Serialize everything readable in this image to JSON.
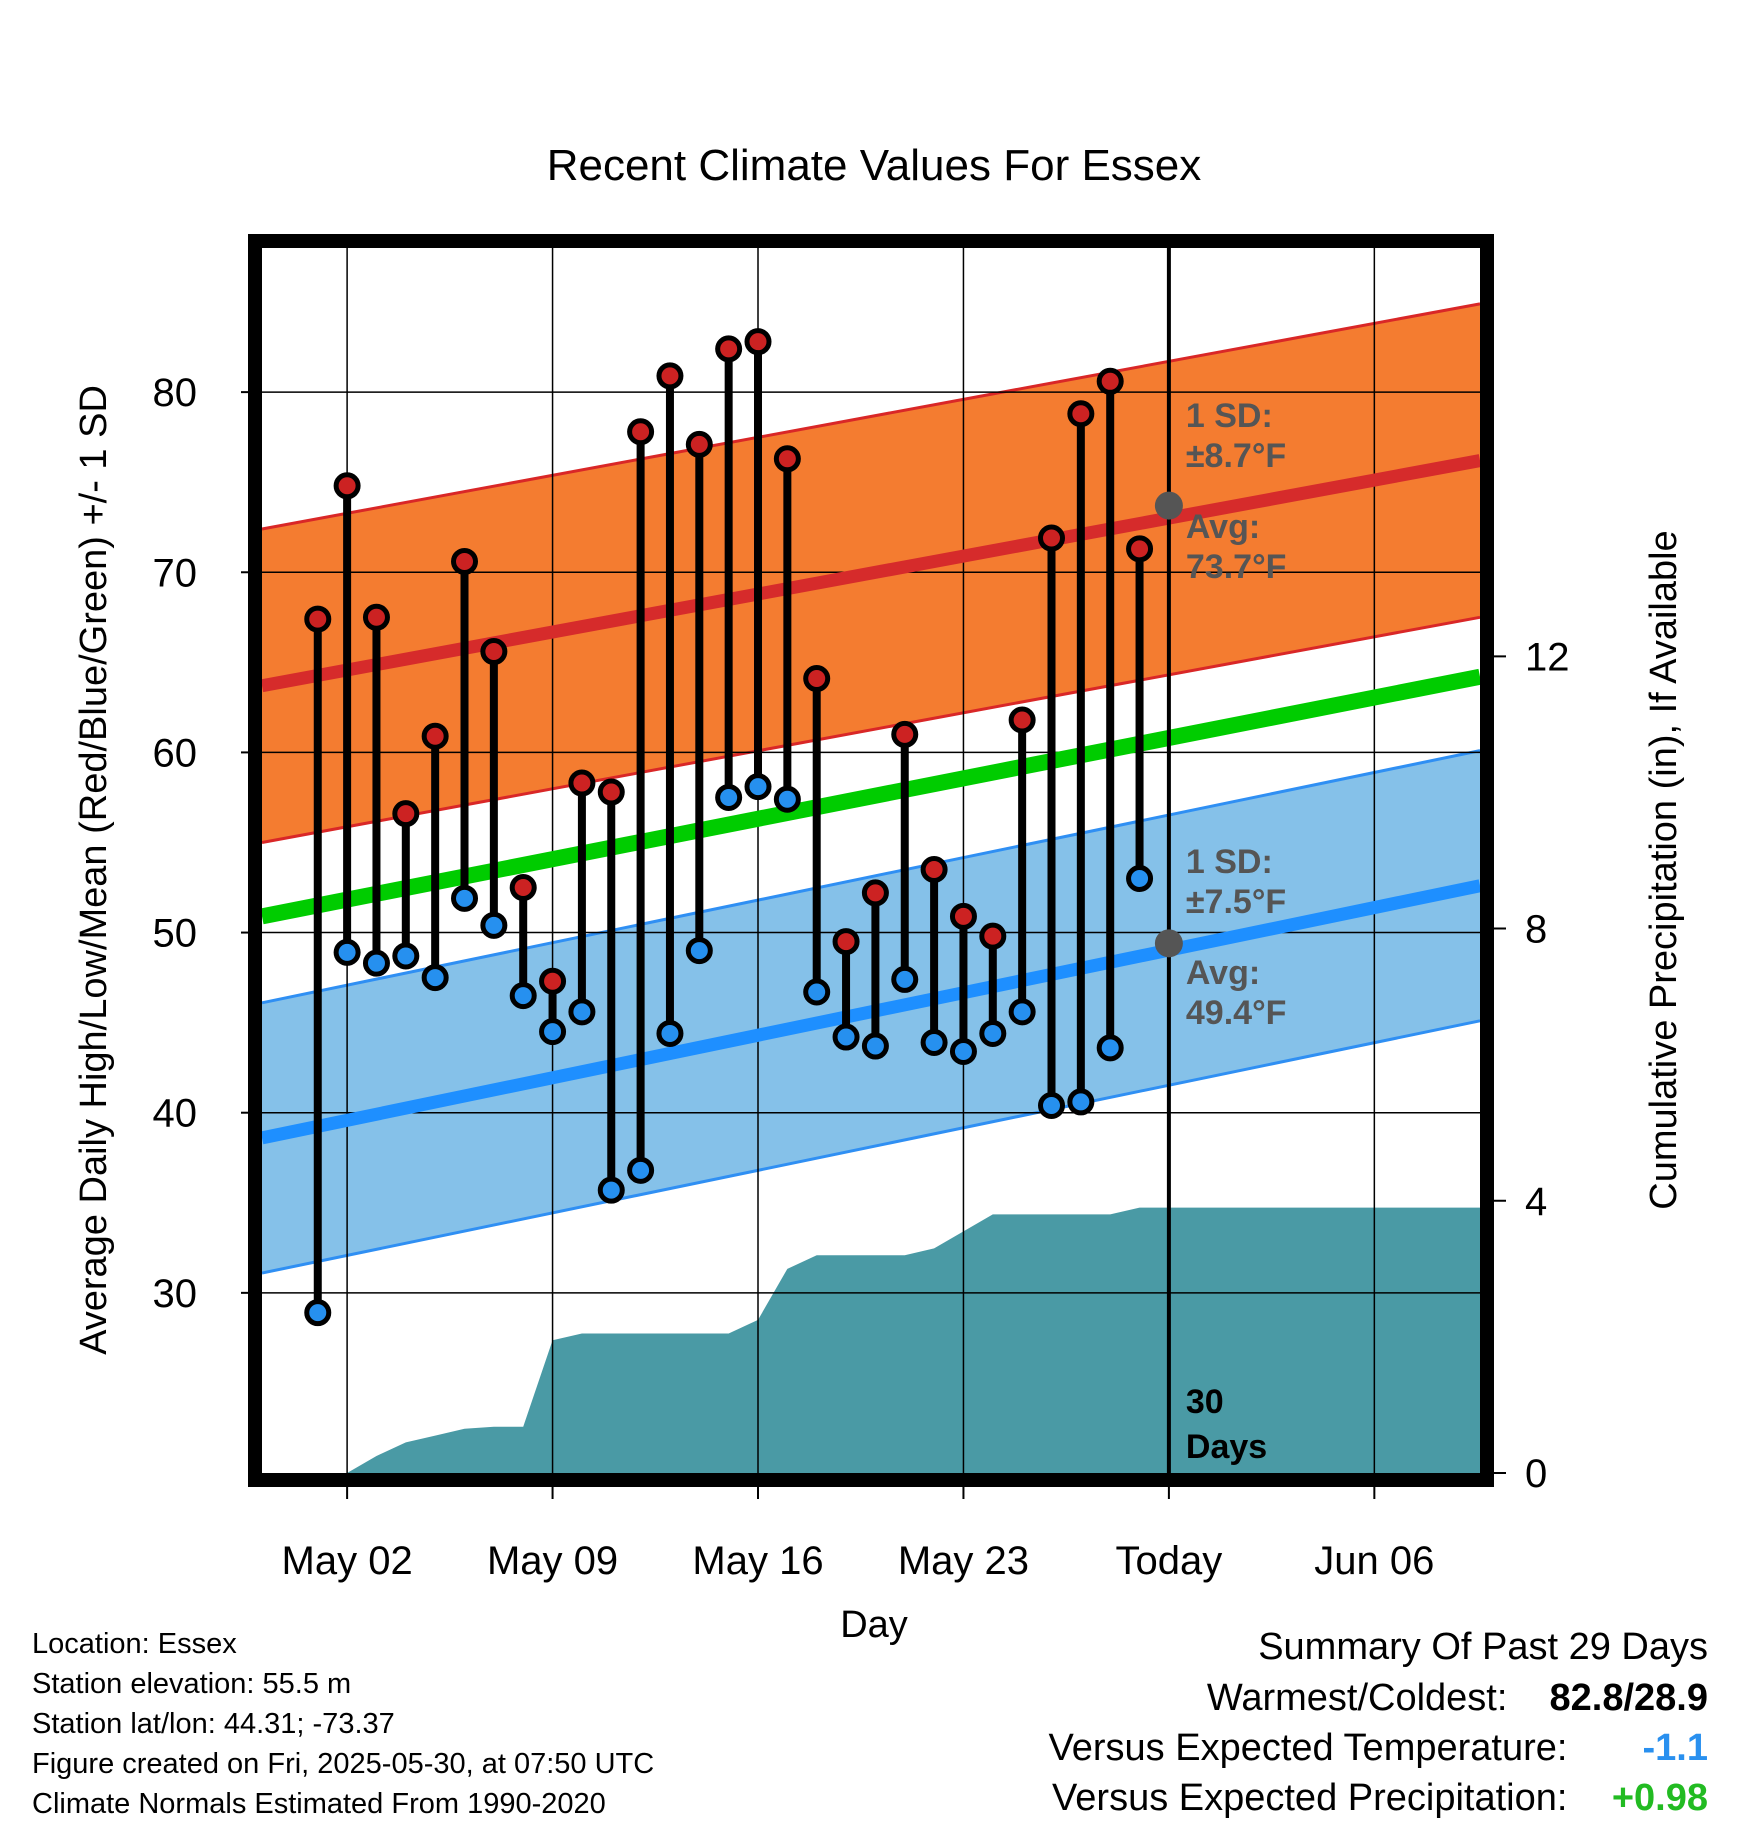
{
  "chart_data": {
    "type": "line",
    "title": "Recent Climate Values For Essex",
    "xlabel": "Day",
    "ylabel": "Average Daily High/Low/Mean (Red/Blue/Green) +/- 1 SD",
    "y2label": "Cumulative Precipitation (in), If Available",
    "ylim": [
      20,
      88
    ],
    "y2lim": [
      0,
      18
    ],
    "yticks": [
      30,
      40,
      50,
      60,
      70,
      80
    ],
    "y2ticks": [
      0,
      4,
      8,
      12
    ],
    "xlim": [
      -0.9,
      40.6
    ],
    "x_tick_labels": [
      "May 02",
      "May 09",
      "May 16",
      "May 23",
      "Today",
      "Jun 06"
    ],
    "x_tick_positions": [
      2,
      9,
      16,
      23,
      30,
      37
    ],
    "today_marker": {
      "x": 30,
      "label_line1": "30",
      "label_line2": "Days"
    },
    "days": [
      1,
      2,
      3,
      4,
      5,
      6,
      7,
      8,
      9,
      10,
      11,
      12,
      13,
      14,
      15,
      16,
      17,
      18,
      19,
      20,
      21,
      22,
      23,
      24,
      25,
      26,
      27,
      28,
      29
    ],
    "highs": [
      67.4,
      74.8,
      67.5,
      56.6,
      60.9,
      70.6,
      65.6,
      52.5,
      47.3,
      58.3,
      57.8,
      77.8,
      80.9,
      77.1,
      82.4,
      82.8,
      76.3,
      64.1,
      49.5,
      52.2,
      61.0,
      53.5,
      50.9,
      49.8,
      61.8,
      71.9,
      78.8,
      80.6,
      71.3
    ],
    "lows": [
      28.9,
      48.9,
      48.3,
      48.7,
      47.5,
      51.9,
      50.4,
      46.5,
      44.5,
      45.6,
      35.7,
      36.8,
      44.4,
      49.0,
      57.5,
      58.1,
      57.4,
      46.7,
      44.2,
      43.7,
      47.4,
      43.9,
      43.4,
      44.4,
      45.6,
      40.4,
      40.6,
      43.6,
      53.0
    ],
    "normal_high_mean": [
      63.7,
      76.2
    ],
    "normal_high_sd": 8.7,
    "normal_low_mean": [
      38.6,
      52.6
    ],
    "normal_low_sd": 7.5,
    "normal_mean_line": [
      50.9,
      64.2
    ],
    "normal_x_range": [
      -0.9,
      40.6
    ],
    "precip_cumulative": [
      [
        2,
        0
      ],
      [
        3,
        0.25
      ],
      [
        4,
        0.45
      ],
      [
        5,
        0.55
      ],
      [
        6,
        0.65
      ],
      [
        7,
        0.68
      ],
      [
        8,
        0.68
      ],
      [
        9,
        1.95
      ],
      [
        10,
        2.05
      ],
      [
        11,
        2.05
      ],
      [
        12,
        2.05
      ],
      [
        13,
        2.05
      ],
      [
        14,
        2.05
      ],
      [
        15,
        2.05
      ],
      [
        16,
        2.25
      ],
      [
        17,
        3.0
      ],
      [
        18,
        3.2
      ],
      [
        19,
        3.2
      ],
      [
        20,
        3.2
      ],
      [
        21,
        3.2
      ],
      [
        22,
        3.3
      ],
      [
        23,
        3.55
      ],
      [
        24,
        3.8
      ],
      [
        25,
        3.8
      ],
      [
        26,
        3.8
      ],
      [
        27,
        3.8
      ],
      [
        28,
        3.8
      ],
      [
        29,
        3.9
      ],
      [
        40.6,
        3.9
      ]
    ],
    "annotations": {
      "high_sd_line1": "1 SD:",
      "high_sd_line2": "±8.7°F",
      "high_avg_line1": "Avg:",
      "high_avg_line2": "73.7°F",
      "high_avg_value": 73.7,
      "low_sd_line1": "1 SD:",
      "low_sd_line2": "±7.5°F",
      "low_avg_line1": "Avg:",
      "low_avg_line2": "49.4°F",
      "low_avg_value": 49.4
    },
    "colors": {
      "high_band": "#f47c30",
      "high_edge": "#d92727",
      "high_mean": "#d62b2b",
      "low_band": "#85c1e9",
      "low_edge": "#2f8ff3",
      "low_mean": "#1e8fff",
      "mean": "#00cc00",
      "precip": "#4a9aa5",
      "annotation": "#555555",
      "high_dot": "#cc2222",
      "low_dot": "#2690ef"
    },
    "grid": true
  },
  "footer": {
    "location": "Location: Essex",
    "elevation": "Station elevation: 55.5 m",
    "latlon": "Station lat/lon: 44.31; -73.37",
    "created": "Figure created on Fri, 2025-05-30, at 07:50 UTC",
    "normals": "Climate Normals Estimated From 1990-2020"
  },
  "summary": {
    "title": "Summary Of Past 29 Days",
    "warm_cold_label": "Warmest/Coldest:",
    "warm_cold_value": "82.8/28.9",
    "temp_label": "Versus Expected Temperature:",
    "temp_value": "-1.1",
    "temp_color": "#2990ef",
    "precip_label": "Versus Expected Precipitation:",
    "precip_value": "+0.98",
    "precip_color": "#22bb22"
  }
}
